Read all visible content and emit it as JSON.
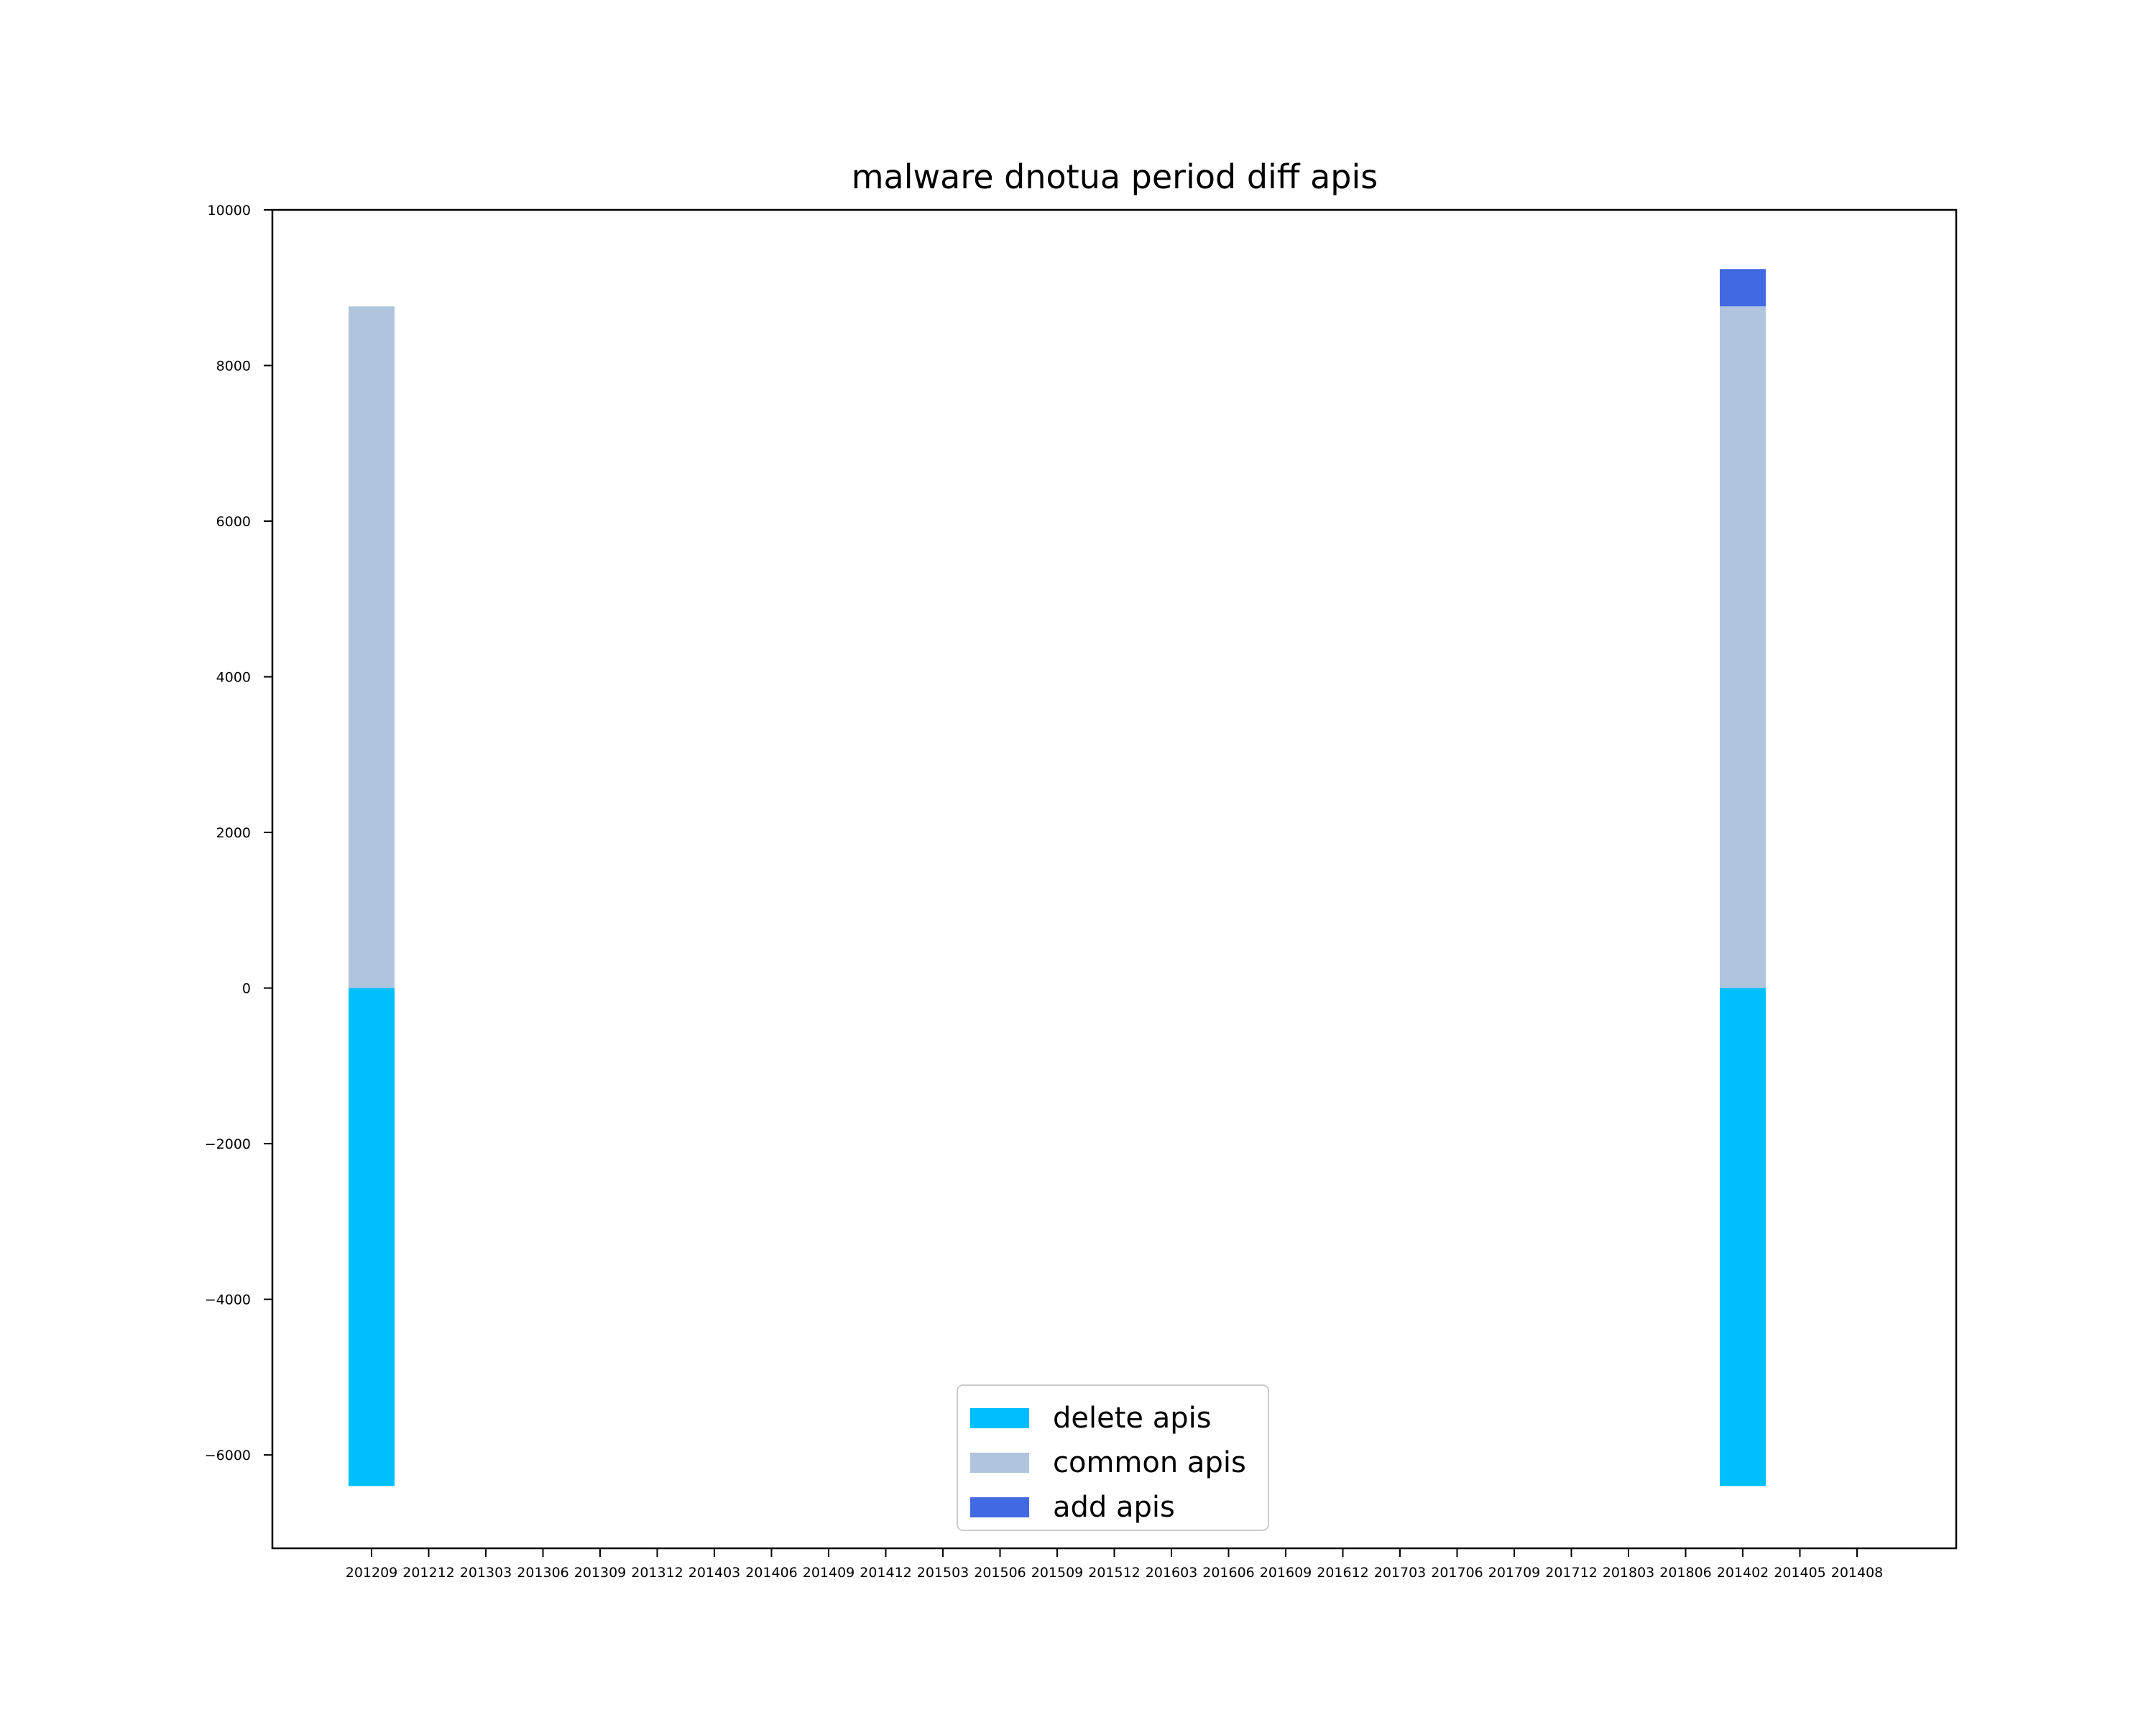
{
  "chart_data": {
    "type": "bar",
    "stacked": true,
    "title": "malware dnotua period diff apis",
    "xlabel": "",
    "ylabel": "",
    "ylim": [
      -7200,
      10000
    ],
    "yticks": [
      -6000,
      -4000,
      -2000,
      0,
      2000,
      4000,
      6000,
      8000,
      10000
    ],
    "ytick_labels": [
      "−6000",
      "−4000",
      "−2000",
      "0",
      "2000",
      "4000",
      "6000",
      "8000",
      "10000"
    ],
    "categories": [
      "201209",
      "201212",
      "201303",
      "201306",
      "201309",
      "201312",
      "201403",
      "201406",
      "201409",
      "201412",
      "201503",
      "201506",
      "201509",
      "201512",
      "201603",
      "201606",
      "201609",
      "201612",
      "201703",
      "201706",
      "201709",
      "201712",
      "201803",
      "201806",
      "201402",
      "201405",
      "201408"
    ],
    "series": [
      {
        "name": "delete apis",
        "color": "#00bfff",
        "values": [
          -6400,
          0,
          0,
          0,
          0,
          0,
          0,
          0,
          0,
          0,
          0,
          0,
          0,
          0,
          0,
          0,
          0,
          0,
          0,
          0,
          0,
          0,
          0,
          0,
          -6400,
          0,
          0
        ]
      },
      {
        "name": "common apis",
        "color": "#b0c4de",
        "values": [
          8760,
          0,
          0,
          0,
          0,
          0,
          0,
          0,
          0,
          0,
          0,
          0,
          0,
          0,
          0,
          0,
          0,
          0,
          0,
          0,
          0,
          0,
          0,
          0,
          8760,
          0,
          0
        ]
      },
      {
        "name": "add apis",
        "color": "#4169e1",
        "values": [
          0,
          0,
          0,
          0,
          0,
          0,
          0,
          0,
          0,
          0,
          0,
          0,
          0,
          0,
          0,
          0,
          0,
          0,
          0,
          0,
          0,
          0,
          0,
          0,
          480,
          0,
          0
        ]
      }
    ],
    "legend": {
      "position": "lower-center",
      "entries": [
        "delete apis",
        "common apis",
        "add apis"
      ]
    },
    "grid": false
  }
}
